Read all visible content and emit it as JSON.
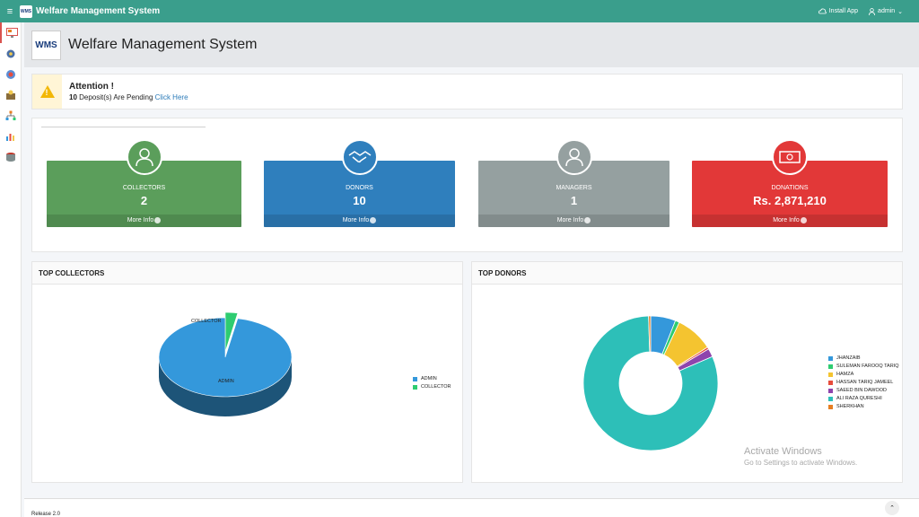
{
  "topbar": {
    "logo_text": "WMS",
    "app_name": "Welfare Management System",
    "install_label": "Install App",
    "user_label": "admin"
  },
  "header": {
    "logo_text": "WMS",
    "title": "Welfare Management System"
  },
  "attention": {
    "title": "Attention !",
    "count": "10",
    "message": " Deposit(s) Are Pending ",
    "link": "Click Here"
  },
  "stats": [
    {
      "label": "COLLECTORS",
      "value": "2",
      "more": "More Info",
      "color": "#5b9e5b",
      "icon": "collector-user-icon"
    },
    {
      "label": "DONORS",
      "value": "10",
      "more": "More Info",
      "color": "#2f7fbd",
      "icon": "handshake-icon"
    },
    {
      "label": "MANAGERS",
      "value": "1",
      "more": "More Info",
      "color": "#95a0a0",
      "icon": "manager-user-icon"
    },
    {
      "label": "DONATIONS",
      "value": "Rs. 2,871,210",
      "more": "More Info",
      "color": "#e23838",
      "icon": "money-icon"
    }
  ],
  "top_collectors": {
    "title": "TOP COLLECTORS",
    "chart_data": {
      "type": "pie",
      "labels": [
        "ADMIN",
        "COLLECTOR"
      ],
      "values": [
        97,
        3
      ],
      "colors": [
        "#3498db",
        "#2ecc71"
      ],
      "legend_position": "right"
    }
  },
  "top_donors": {
    "title": "TOP DONORS",
    "chart_data": {
      "type": "pie",
      "labels": [
        "JHANZAIB",
        "SULEMAN FAROOQ TARIQ",
        "HAMZA",
        "HASSAN TARIQ JAMEEL",
        "SAEED BIN DAWOOD",
        "ALI RAZA QURESHI",
        "SHERKHAN"
      ],
      "values": [
        6,
        1,
        9,
        0.5,
        2,
        81,
        0.5
      ],
      "colors": [
        "#3498db",
        "#2ecc71",
        "#f4c430",
        "#e74c3c",
        "#8e44ad",
        "#2dbfb8",
        "#e67e22"
      ],
      "legend_position": "right"
    }
  },
  "watermark": {
    "line1": "Activate Windows",
    "line2": "Go to Settings to activate Windows."
  },
  "footer": {
    "release": "Release 2.0"
  }
}
